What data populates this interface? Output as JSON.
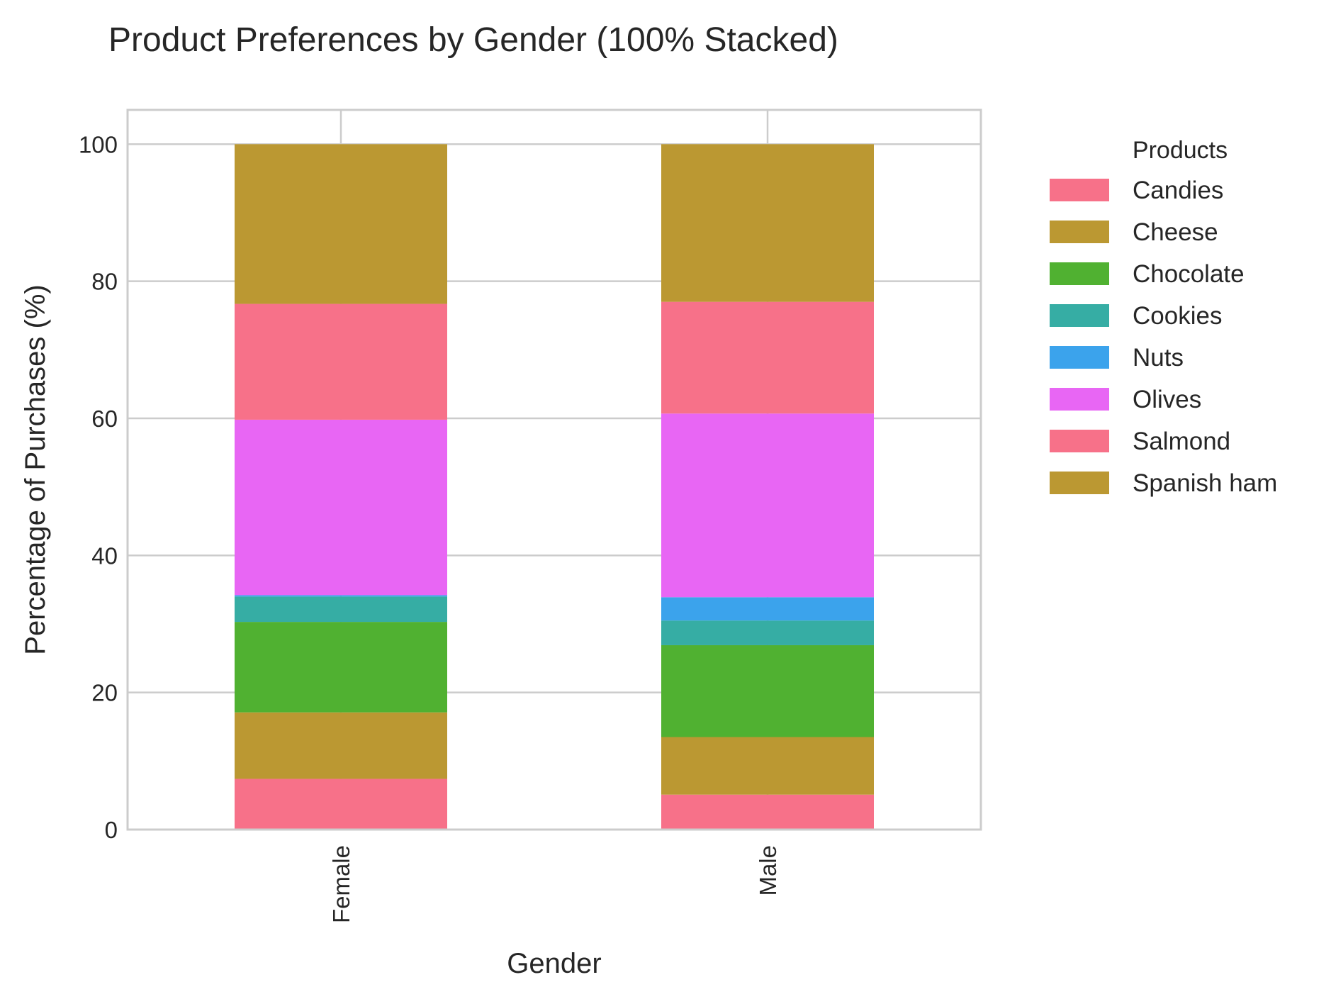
{
  "chart_data": {
    "type": "bar",
    "stacked": true,
    "title": "Product Preferences by Gender (100% Stacked)",
    "xlabel": "Gender",
    "ylabel": "Percentage of Purchases (%)",
    "ylim": [
      0,
      105
    ],
    "yticks": [
      0,
      20,
      40,
      60,
      80,
      100
    ],
    "categories": [
      "Female",
      "Male"
    ],
    "grid": true,
    "legend": {
      "title": "Products",
      "placement": "outside-right"
    },
    "series": [
      {
        "name": "Candies",
        "color": "#f77189",
        "values": [
          7.4,
          5.1
        ]
      },
      {
        "name": "Cheese",
        "color": "#bb9832",
        "values": [
          9.7,
          8.4
        ]
      },
      {
        "name": "Chocolate",
        "color": "#50b131",
        "values": [
          13.2,
          13.4
        ]
      },
      {
        "name": "Cookies",
        "color": "#36ada4",
        "values": [
          3.7,
          3.6
        ]
      },
      {
        "name": "Nuts",
        "color": "#3ba3ec",
        "values": [
          0.2,
          3.4
        ]
      },
      {
        "name": "Olives",
        "color": "#e866f4",
        "values": [
          25.6,
          26.8
        ]
      },
      {
        "name": "Salmond",
        "color": "#f77189",
        "values": [
          16.9,
          16.3
        ]
      },
      {
        "name": "Spanish ham",
        "color": "#bb9832",
        "values": [
          23.3,
          23.0
        ]
      }
    ]
  }
}
